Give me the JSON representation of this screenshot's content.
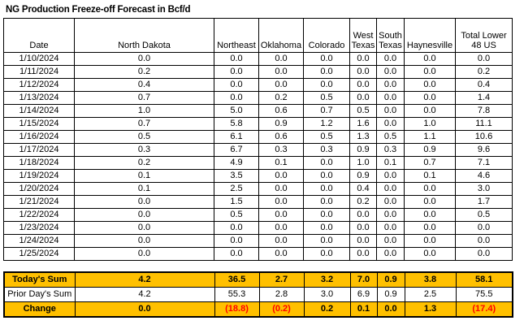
{
  "title": "NG Production Freeze-off Forecast in Bcf/d",
  "colors": {
    "highlight_fill": "#FFC000",
    "negative_text": "#FF0000",
    "border": "#000000"
  },
  "chart_data": {
    "type": "table",
    "title": "NG Production Freeze-off Forecast in Bcf/d",
    "unit": "Bcf/d",
    "columns": [
      "Date",
      "North Dakota",
      "Northeast",
      "Oklahoma",
      "Colorado",
      "West Texas",
      "South Texas",
      "Haynesville",
      "Total Lower 48 US"
    ],
    "rows": [
      [
        "1/10/2024",
        "0.0",
        "0.0",
        "0.0",
        "0.0",
        "0.0",
        "0.0",
        "0.0",
        "0.0"
      ],
      [
        "1/11/2024",
        "0.2",
        "0.0",
        "0.0",
        "0.0",
        "0.0",
        "0.0",
        "0.0",
        "0.2"
      ],
      [
        "1/12/2024",
        "0.4",
        "0.0",
        "0.0",
        "0.0",
        "0.0",
        "0.0",
        "0.0",
        "0.4"
      ],
      [
        "1/13/2024",
        "0.7",
        "0.0",
        "0.2",
        "0.5",
        "0.0",
        "0.0",
        "0.0",
        "1.4"
      ],
      [
        "1/14/2024",
        "1.0",
        "5.0",
        "0.6",
        "0.7",
        "0.5",
        "0.0",
        "0.0",
        "7.8"
      ],
      [
        "1/15/2024",
        "0.7",
        "5.8",
        "0.9",
        "1.2",
        "1.6",
        "0.0",
        "1.0",
        "11.1"
      ],
      [
        "1/16/2024",
        "0.5",
        "6.1",
        "0.6",
        "0.5",
        "1.3",
        "0.5",
        "1.1",
        "10.6"
      ],
      [
        "1/17/2024",
        "0.3",
        "6.7",
        "0.3",
        "0.3",
        "0.9",
        "0.3",
        "0.9",
        "9.6"
      ],
      [
        "1/18/2024",
        "0.2",
        "4.9",
        "0.1",
        "0.0",
        "1.0",
        "0.1",
        "0.7",
        "7.1"
      ],
      [
        "1/19/2024",
        "0.1",
        "3.5",
        "0.0",
        "0.0",
        "0.9",
        "0.0",
        "0.1",
        "4.6"
      ],
      [
        "1/20/2024",
        "0.1",
        "2.5",
        "0.0",
        "0.0",
        "0.4",
        "0.0",
        "0.0",
        "3.0"
      ],
      [
        "1/21/2024",
        "0.0",
        "1.5",
        "0.0",
        "0.0",
        "0.2",
        "0.0",
        "0.0",
        "1.7"
      ],
      [
        "1/22/2024",
        "0.0",
        "0.5",
        "0.0",
        "0.0",
        "0.0",
        "0.0",
        "0.0",
        "0.5"
      ],
      [
        "1/23/2024",
        "0.0",
        "0.0",
        "0.0",
        "0.0",
        "0.0",
        "0.0",
        "0.0",
        "0.0"
      ],
      [
        "1/24/2024",
        "0.0",
        "0.0",
        "0.0",
        "0.0",
        "0.0",
        "0.0",
        "0.0",
        "0.0"
      ],
      [
        "1/25/2024",
        "0.0",
        "0.0",
        "0.0",
        "0.0",
        "0.0",
        "0.0",
        "0.0",
        "0.0"
      ]
    ],
    "summary_rows": [
      {
        "label": "Today's Sum",
        "highlight": true,
        "bold": true,
        "values": [
          "4.2",
          "36.5",
          "2.7",
          "3.2",
          "7.0",
          "0.9",
          "3.8",
          "58.1"
        ]
      },
      {
        "label": "Prior Day's Sum",
        "highlight": false,
        "bold": false,
        "values": [
          "4.2",
          "55.3",
          "2.8",
          "3.0",
          "6.9",
          "0.9",
          "2.5",
          "75.5"
        ]
      },
      {
        "label": "Change",
        "highlight": true,
        "bold": true,
        "values": [
          "0.0",
          "(18.8)",
          "(0.2)",
          "0.2",
          "0.1",
          "0.0",
          "1.3",
          "(17.4)"
        ]
      }
    ]
  }
}
